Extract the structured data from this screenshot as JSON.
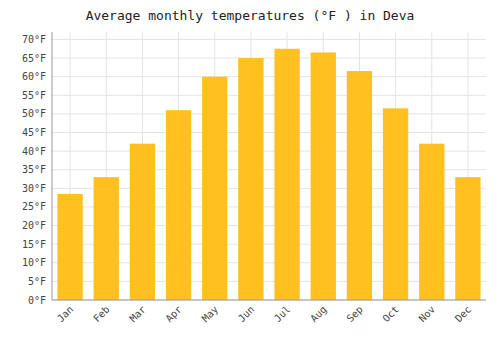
{
  "chart_data": {
    "type": "bar",
    "title": "Average monthly temperatures (°F ) in Deva",
    "categories": [
      "Jan",
      "Feb",
      "Mar",
      "Apr",
      "May",
      "Jun",
      "Jul",
      "Aug",
      "Sep",
      "Oct",
      "Nov",
      "Dec"
    ],
    "values": [
      28.5,
      33,
      42,
      51,
      60,
      65,
      67.5,
      66.5,
      61.5,
      51.5,
      42,
      33
    ],
    "color": "#FFC020",
    "ylim": [
      0,
      72
    ],
    "yticks": [
      {
        "value": 0,
        "label": "0°F"
      },
      {
        "value": 5,
        "label": "5°F"
      },
      {
        "value": 10,
        "label": "10°F"
      },
      {
        "value": 15,
        "label": "15°F"
      },
      {
        "value": 20,
        "label": "20°F"
      },
      {
        "value": 25,
        "label": "25°F"
      },
      {
        "value": 30,
        "label": "30°F"
      },
      {
        "value": 35,
        "label": "35°F"
      },
      {
        "value": 40,
        "label": "40°F"
      },
      {
        "value": 45,
        "label": "45°F"
      },
      {
        "value": 50,
        "label": "50°F"
      },
      {
        "value": 55,
        "label": "55°F"
      },
      {
        "value": 60,
        "label": "60°F"
      },
      {
        "value": 65,
        "label": "65°F"
      },
      {
        "value": 70,
        "label": "70°F"
      }
    ],
    "grid": true
  }
}
